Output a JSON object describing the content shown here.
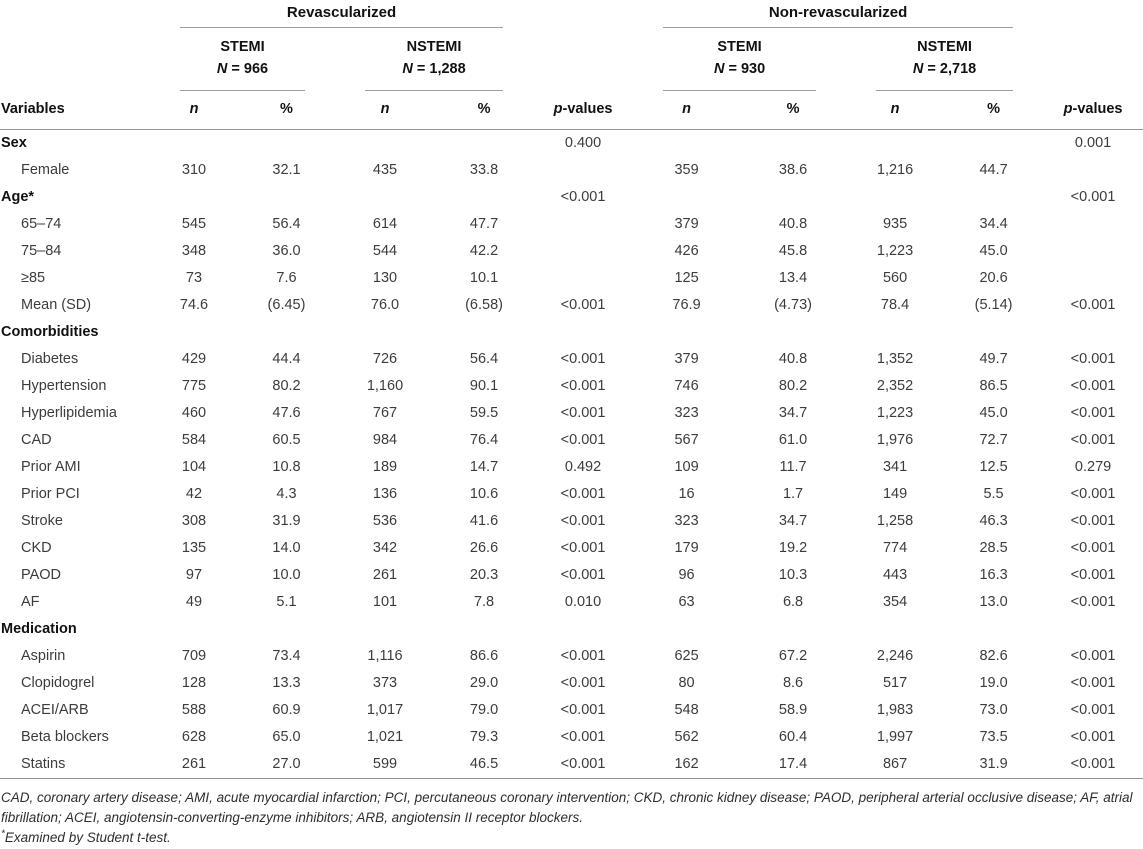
{
  "table": {
    "groups": [
      {
        "label": "Revascularized",
        "subgroups": [
          {
            "name": "STEMI",
            "n": "N = 966"
          },
          {
            "name": "NSTEMI",
            "n": "N = 1,288"
          }
        ]
      },
      {
        "label": "Non-revascularized",
        "subgroups": [
          {
            "name": "STEMI",
            "n": "N = 930"
          },
          {
            "name": "NSTEMI",
            "n": "N = 2,718"
          }
        ]
      }
    ],
    "header": {
      "variables": "Variables",
      "n": "n",
      "pct": "%",
      "p": "p-values"
    },
    "rows": [
      {
        "label": "Sex",
        "section": true,
        "cells": [
          "",
          "",
          "",
          "",
          "0.400",
          "",
          "",
          "",
          "",
          "0.001"
        ]
      },
      {
        "label": "Female",
        "section": false,
        "cells": [
          "310",
          "32.1",
          "435",
          "33.8",
          "",
          "359",
          "38.6",
          "1,216",
          "44.7",
          ""
        ]
      },
      {
        "label": "Age*",
        "section": true,
        "cells": [
          "",
          "",
          "",
          "",
          "<0.001",
          "",
          "",
          "",
          "",
          "<0.001"
        ]
      },
      {
        "label": "65–74",
        "section": false,
        "cells": [
          "545",
          "56.4",
          "614",
          "47.7",
          "",
          "379",
          "40.8",
          "935",
          "34.4",
          ""
        ]
      },
      {
        "label": "75–84",
        "section": false,
        "cells": [
          "348",
          "36.0",
          "544",
          "42.2",
          "",
          "426",
          "45.8",
          "1,223",
          "45.0",
          ""
        ]
      },
      {
        "label": "≥85",
        "section": false,
        "cells": [
          "73",
          "7.6",
          "130",
          "10.1",
          "",
          "125",
          "13.4",
          "560",
          "20.6",
          ""
        ]
      },
      {
        "label": "Mean (SD)",
        "section": false,
        "cells": [
          "74.6",
          "(6.45)",
          "76.0",
          "(6.58)",
          "<0.001",
          "76.9",
          "(4.73)",
          "78.4",
          "(5.14)",
          "<0.001"
        ]
      },
      {
        "label": "Comorbidities",
        "section": true,
        "cells": [
          "",
          "",
          "",
          "",
          "",
          "",
          "",
          "",
          "",
          ""
        ]
      },
      {
        "label": "Diabetes",
        "section": false,
        "cells": [
          "429",
          "44.4",
          "726",
          "56.4",
          "<0.001",
          "379",
          "40.8",
          "1,352",
          "49.7",
          "<0.001"
        ]
      },
      {
        "label": "Hypertension",
        "section": false,
        "cells": [
          "775",
          "80.2",
          "1,160",
          "90.1",
          "<0.001",
          "746",
          "80.2",
          "2,352",
          "86.5",
          "<0.001"
        ]
      },
      {
        "label": "Hyperlipidemia",
        "section": false,
        "cells": [
          "460",
          "47.6",
          "767",
          "59.5",
          "<0.001",
          "323",
          "34.7",
          "1,223",
          "45.0",
          "<0.001"
        ]
      },
      {
        "label": "CAD",
        "section": false,
        "cells": [
          "584",
          "60.5",
          "984",
          "76.4",
          "<0.001",
          "567",
          "61.0",
          "1,976",
          "72.7",
          "<0.001"
        ]
      },
      {
        "label": "Prior AMI",
        "section": false,
        "cells": [
          "104",
          "10.8",
          "189",
          "14.7",
          "0.492",
          "109",
          "11.7",
          "341",
          "12.5",
          "0.279"
        ]
      },
      {
        "label": "Prior PCI",
        "section": false,
        "cells": [
          "42",
          "4.3",
          "136",
          "10.6",
          "<0.001",
          "16",
          "1.7",
          "149",
          "5.5",
          "<0.001"
        ]
      },
      {
        "label": "Stroke",
        "section": false,
        "cells": [
          "308",
          "31.9",
          "536",
          "41.6",
          "<0.001",
          "323",
          "34.7",
          "1,258",
          "46.3",
          "<0.001"
        ]
      },
      {
        "label": "CKD",
        "section": false,
        "cells": [
          "135",
          "14.0",
          "342",
          "26.6",
          "<0.001",
          "179",
          "19.2",
          "774",
          "28.5",
          "<0.001"
        ]
      },
      {
        "label": "PAOD",
        "section": false,
        "cells": [
          "97",
          "10.0",
          "261",
          "20.3",
          "<0.001",
          "96",
          "10.3",
          "443",
          "16.3",
          "<0.001"
        ]
      },
      {
        "label": "AF",
        "section": false,
        "cells": [
          "49",
          "5.1",
          "101",
          "7.8",
          "0.010",
          "63",
          "6.8",
          "354",
          "13.0",
          "<0.001"
        ]
      },
      {
        "label": "Medication",
        "section": true,
        "cells": [
          "",
          "",
          "",
          "",
          "",
          "",
          "",
          "",
          "",
          ""
        ]
      },
      {
        "label": "Aspirin",
        "section": false,
        "cells": [
          "709",
          "73.4",
          "1,116",
          "86.6",
          "<0.001",
          "625",
          "67.2",
          "2,246",
          "82.6",
          "<0.001"
        ]
      },
      {
        "label": "Clopidogrel",
        "section": false,
        "cells": [
          "128",
          "13.3",
          "373",
          "29.0",
          "<0.001",
          "80",
          "8.6",
          "517",
          "19.0",
          "<0.001"
        ]
      },
      {
        "label": "ACEI/ARB",
        "section": false,
        "cells": [
          "588",
          "60.9",
          "1,017",
          "79.0",
          "<0.001",
          "548",
          "58.9",
          "1,983",
          "73.0",
          "<0.001"
        ]
      },
      {
        "label": "Beta blockers",
        "section": false,
        "cells": [
          "628",
          "65.0",
          "1,021",
          "79.3",
          "<0.001",
          "562",
          "60.4",
          "1,997",
          "73.5",
          "<0.001"
        ]
      },
      {
        "label": "Statins",
        "section": false,
        "cells": [
          "261",
          "27.0",
          "599",
          "46.5",
          "<0.001",
          "162",
          "17.4",
          "867",
          "31.9",
          "<0.001"
        ]
      }
    ],
    "footnotes": {
      "abbreviations": "CAD, coronary artery disease; AMI, acute myocardial infarction; PCI, percutaneous coronary intervention; CKD, chronic kidney disease; PAOD, peripheral arterial occlusive disease; AF, atrial fibrillation; ACEI, angiotensin-converting-enzyme inhibitors; ARB, angiotensin II receptor blockers.",
      "marker": "*",
      "test_note": "Examined by Student t-test."
    }
  }
}
